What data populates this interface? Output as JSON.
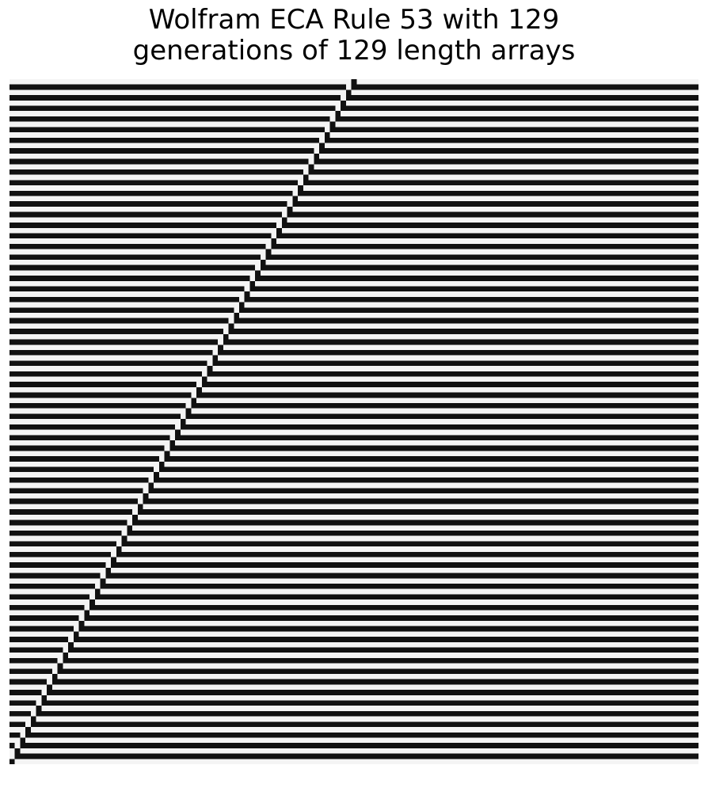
{
  "title": {
    "line1": "Wolfram ECA Rule 53 with 129",
    "line2": "generations of 129 length arrays"
  },
  "automaton": {
    "rule": 53,
    "generations": 129,
    "width": 129,
    "initial_condition": "single live cell at center",
    "boundary": "periodic"
  },
  "colors": {
    "live_cell": "#111111",
    "dead_cell": "#f4f4f4"
  }
}
